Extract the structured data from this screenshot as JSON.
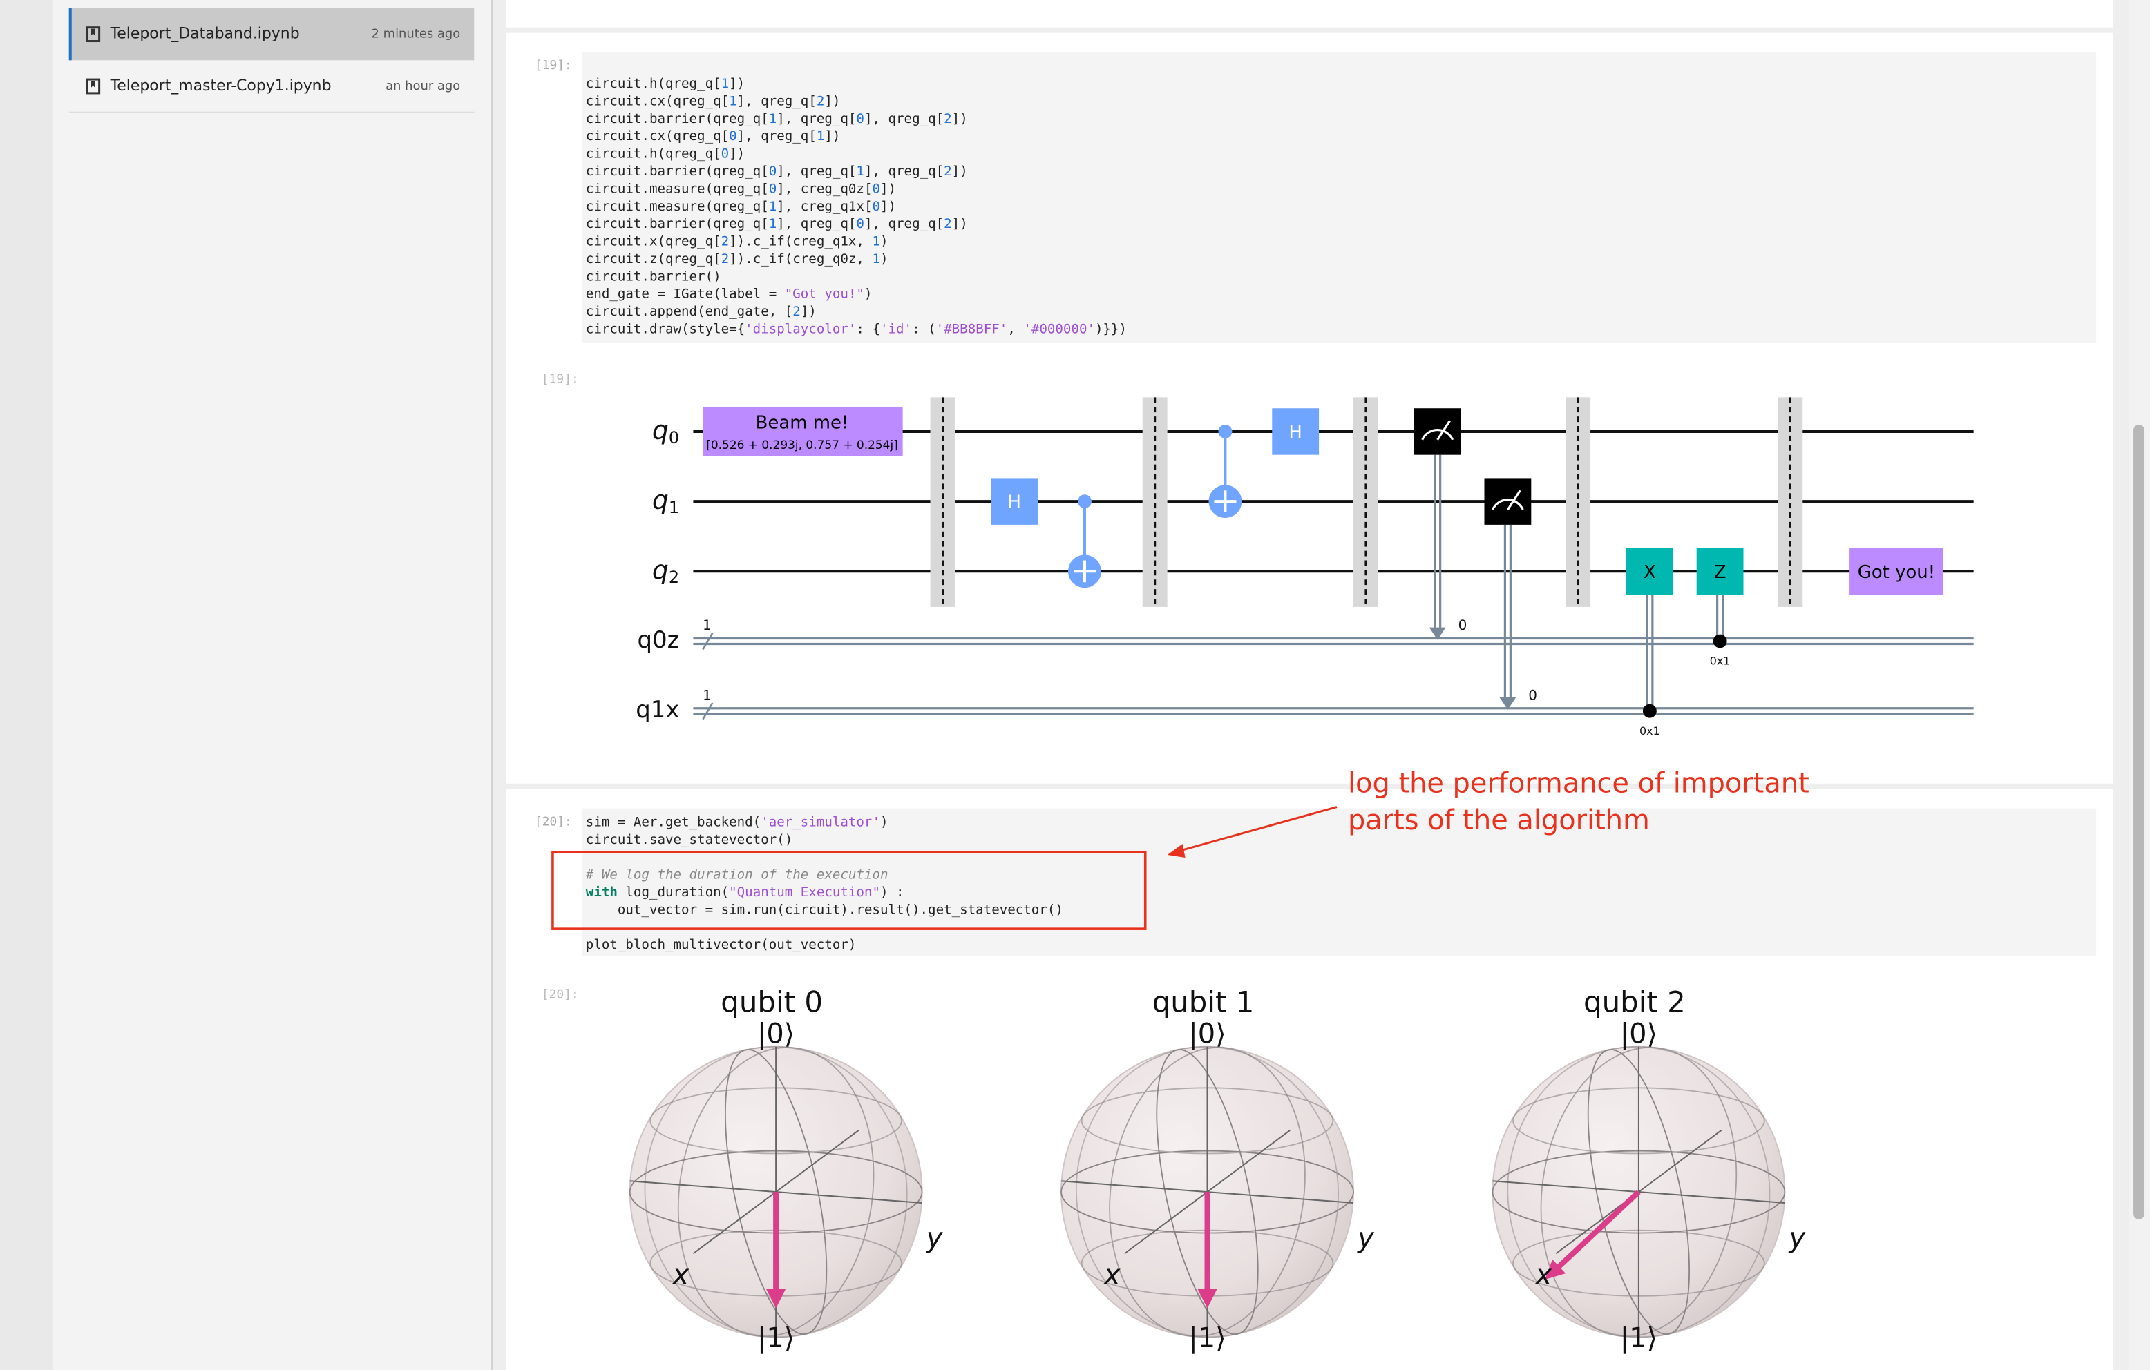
{
  "sidebar": {
    "files": [
      {
        "name": "Teleport_Databand.ipynb",
        "modified": "2 minutes ago"
      },
      {
        "name": "Teleport_master-Copy1.ipynb",
        "modified": "an hour ago"
      }
    ]
  },
  "cells": [
    {
      "prompt": "[19]:",
      "output_prompt": "[19]:",
      "code": [
        [
          "circuit.h(qreg_q[1])",
          "circuit.cx(qreg_q[1], qreg_q[2])",
          "circuit.barrier(qreg_q[1], qreg_q[0], qreg_q[2])",
          "circuit.cx(qreg_q[0], qreg_q[1])",
          "circuit.h(qreg_q[0])",
          "circuit.barrier(qreg_q[0], qreg_q[1], qreg_q[2])",
          "circuit.measure(qreg_q[0], creg_q0z[0])",
          "circuit.measure(qreg_q[1], creg_q1x[0])",
          "circuit.barrier(qreg_q[1], qreg_q[0], qreg_q[2])",
          "circuit.x(qreg_q[2]).c_if(creg_q1x, 1)",
          "circuit.z(qreg_q[2]).c_if(creg_q0z, 1)",
          "circuit.barrier()",
          "end_gate = IGate(label = \"Got you!\")",
          "circuit.append(end_gate, [2])",
          "circuit.draw(style={'displaycolor': {'id': ('#BB8BFF', '#000000')}})"
        ]
      ]
    },
    {
      "prompt": "[20]:",
      "output_prompt": "[20]:",
      "code": [
        [
          "sim = Aer.get_backend('aer_simulator')",
          "circuit.save_statevector()"
        ],
        [
          "# We log the duration of the execution",
          "with log_duration(\"Quantum Execution\") :",
          "    out_vector = sim.run(circuit).result().get_statevector()"
        ],
        [
          "plot_bloch_multivector(out_vector)"
        ]
      ]
    }
  ],
  "circuit": {
    "qubits": [
      {
        "symbol": "q",
        "index": "0"
      },
      {
        "symbol": "q",
        "index": "1"
      },
      {
        "symbol": "q",
        "index": "2"
      }
    ],
    "clbits": [
      {
        "name": "q0z",
        "size": "1"
      },
      {
        "name": "q1x",
        "size": "1"
      }
    ],
    "init_gate": {
      "label": "Beam me!",
      "params": "[0.526 + 0.293j, 0.757 + 0.254j]"
    },
    "h_gates": [
      "H",
      "H"
    ],
    "measure_bits": [
      "0",
      "0"
    ],
    "x_gate": {
      "label": "X",
      "condition": "0x1"
    },
    "z_gate": {
      "label": "Z",
      "condition": "0x1"
    },
    "end_gate": "Got you!"
  },
  "annotation": {
    "lines": [
      "log the performance of important",
      "parts of the algorithm"
    ]
  },
  "bloch": {
    "titles": [
      "qubit 0",
      "qubit 1",
      "qubit 2"
    ],
    "ket0": "|0⟩",
    "ket1": "|1⟩",
    "x_label": "x",
    "y_label": "y"
  }
}
